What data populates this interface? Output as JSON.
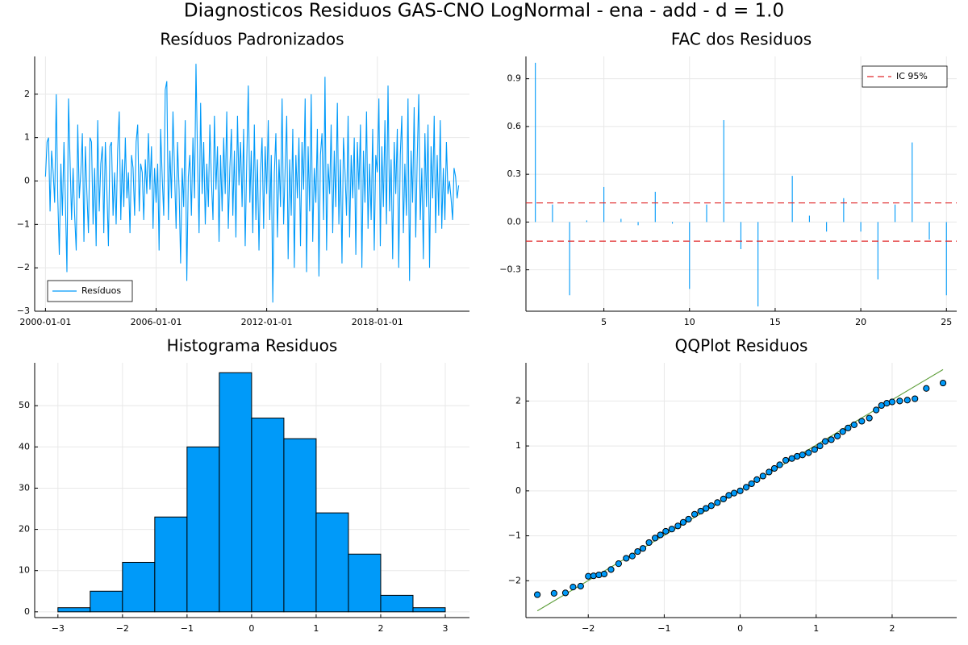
{
  "title": "Diagnosticos Residuos  GAS-CNO LogNormal - ena - add - d = 1.0",
  "chart_data": [
    {
      "type": "line",
      "title": "Resíduos Padronizados",
      "x": [
        "2000-01-01",
        "2000-02-01",
        "2000-03-01",
        "2000-04-01",
        "2000-05-01",
        "2000-06-01",
        "2000-07-01",
        "2000-08-01",
        "2000-09-01",
        "2000-10-01",
        "2000-11-01",
        "2000-12-01",
        "2001-01-01",
        "2001-02-01",
        "2001-03-01",
        "2001-04-01",
        "2001-05-01",
        "2001-06-01",
        "2001-07-01",
        "2001-08-01",
        "2001-09-01",
        "2001-10-01",
        "2001-11-01",
        "2001-12-01",
        "2002-01-01",
        "2002-02-01",
        "2002-03-01",
        "2002-04-01",
        "2002-05-01",
        "2002-06-01",
        "2002-07-01",
        "2002-08-01",
        "2002-09-01",
        "2002-10-01",
        "2002-11-01",
        "2002-12-01",
        "2003-01-01",
        "2003-02-01",
        "2003-03-01",
        "2003-04-01",
        "2003-05-01",
        "2003-06-01",
        "2003-07-01",
        "2003-08-01",
        "2003-09-01",
        "2003-10-01",
        "2003-11-01",
        "2003-12-01",
        "2004-01-01",
        "2004-02-01",
        "2004-03-01",
        "2004-04-01",
        "2004-05-01",
        "2004-06-01",
        "2004-07-01",
        "2004-08-01",
        "2004-09-01",
        "2004-10-01",
        "2004-11-01",
        "2004-12-01",
        "2005-01-01",
        "2005-02-01",
        "2005-03-01",
        "2005-04-01",
        "2005-05-01",
        "2005-06-01",
        "2005-07-01",
        "2005-08-01",
        "2005-09-01",
        "2005-10-01",
        "2005-11-01",
        "2005-12-01",
        "2006-01-01",
        "2006-02-01",
        "2006-03-01",
        "2006-04-01",
        "2006-05-01",
        "2006-06-01",
        "2006-07-01",
        "2006-08-01",
        "2006-09-01",
        "2006-10-01",
        "2006-11-01",
        "2006-12-01",
        "2007-01-01",
        "2007-02-01",
        "2007-03-01",
        "2007-04-01",
        "2007-05-01",
        "2007-06-01",
        "2007-07-01",
        "2007-08-01",
        "2007-09-01",
        "2007-10-01",
        "2007-11-01",
        "2007-12-01",
        "2008-01-01",
        "2008-02-01",
        "2008-03-01",
        "2008-04-01",
        "2008-05-01",
        "2008-06-01",
        "2008-07-01",
        "2008-08-01",
        "2008-09-01",
        "2008-10-01",
        "2008-11-01",
        "2008-12-01",
        "2009-01-01",
        "2009-02-01",
        "2009-03-01",
        "2009-04-01",
        "2009-05-01",
        "2009-06-01",
        "2009-07-01",
        "2009-08-01",
        "2009-09-01",
        "2009-10-01",
        "2009-11-01",
        "2009-12-01",
        "2010-01-01",
        "2010-02-01",
        "2010-03-01",
        "2010-04-01",
        "2010-05-01",
        "2010-06-01",
        "2010-07-01",
        "2010-08-01",
        "2010-09-01",
        "2010-10-01",
        "2010-11-01",
        "2010-12-01",
        "2011-01-01",
        "2011-02-01",
        "2011-03-01",
        "2011-04-01",
        "2011-05-01",
        "2011-06-01",
        "2011-07-01",
        "2011-08-01",
        "2011-09-01",
        "2011-10-01",
        "2011-11-01",
        "2011-12-01",
        "2012-01-01",
        "2012-02-01",
        "2012-03-01",
        "2012-04-01",
        "2012-05-01",
        "2012-06-01",
        "2012-07-01",
        "2012-08-01",
        "2012-09-01",
        "2012-10-01",
        "2012-11-01",
        "2012-12-01",
        "2013-01-01",
        "2013-02-01",
        "2013-03-01",
        "2013-04-01",
        "2013-05-01",
        "2013-06-01",
        "2013-07-01",
        "2013-08-01",
        "2013-09-01",
        "2013-10-01",
        "2013-11-01",
        "2013-12-01",
        "2014-01-01",
        "2014-02-01",
        "2014-03-01",
        "2014-04-01",
        "2014-05-01",
        "2014-06-01",
        "2014-07-01",
        "2014-08-01",
        "2014-09-01",
        "2014-10-01",
        "2014-11-01",
        "2014-12-01",
        "2015-01-01",
        "2015-02-01",
        "2015-03-01",
        "2015-04-01",
        "2015-05-01",
        "2015-06-01",
        "2015-07-01",
        "2015-08-01",
        "2015-09-01",
        "2015-10-01",
        "2015-11-01",
        "2015-12-01",
        "2016-01-01",
        "2016-02-01",
        "2016-03-01",
        "2016-04-01",
        "2016-05-01",
        "2016-06-01",
        "2016-07-01",
        "2016-08-01",
        "2016-09-01",
        "2016-10-01",
        "2016-11-01",
        "2016-12-01",
        "2017-01-01",
        "2017-02-01",
        "2017-03-01",
        "2017-04-01",
        "2017-05-01",
        "2017-06-01",
        "2017-07-01",
        "2017-08-01",
        "2017-09-01",
        "2017-10-01",
        "2017-11-01",
        "2017-12-01",
        "2018-01-01",
        "2018-02-01",
        "2018-03-01",
        "2018-04-01",
        "2018-05-01",
        "2018-06-01",
        "2018-07-01",
        "2018-08-01",
        "2018-09-01",
        "2018-10-01",
        "2018-11-01",
        "2018-12-01",
        "2019-01-01",
        "2019-02-01",
        "2019-03-01",
        "2019-04-01",
        "2019-05-01",
        "2019-06-01",
        "2019-07-01",
        "2019-08-01",
        "2019-09-01",
        "2019-10-01",
        "2019-11-01",
        "2019-12-01",
        "2020-01-01",
        "2020-02-01",
        "2020-03-01",
        "2020-04-01",
        "2020-05-01",
        "2020-06-01",
        "2020-07-01",
        "2020-08-01",
        "2020-09-01",
        "2020-10-01",
        "2020-11-01",
        "2020-12-01",
        "2021-01-01",
        "2021-02-01",
        "2021-03-01",
        "2021-04-01",
        "2021-05-01",
        "2021-06-01",
        "2021-07-01",
        "2021-08-01",
        "2021-09-01",
        "2021-10-01",
        "2021-11-01",
        "2021-12-01",
        "2022-01-01",
        "2022-02-01",
        "2022-03-01",
        "2022-04-01",
        "2022-05-01",
        "2022-06-01"
      ],
      "series": [
        {
          "name": "Resíduos",
          "color": "#009af9",
          "values": [
            0.1,
            0.9,
            1.0,
            -0.7,
            0.7,
            0.2,
            -0.5,
            2.0,
            -0.4,
            -1.7,
            0.4,
            -0.8,
            0.9,
            -0.6,
            -2.1,
            1.9,
            0.5,
            -0.9,
            0.3,
            -0.8,
            -1.6,
            1.3,
            -0.4,
            0.2,
            1.1,
            -1.4,
            0.8,
            -0.3,
            -1.2,
            1.0,
            0.9,
            -1.0,
            0.3,
            -1.5,
            1.4,
            -0.7,
            0.4,
            0.8,
            -1.2,
            0.9,
            -0.2,
            -1.5,
            0.8,
            0.9,
            -0.8,
            0.2,
            -1.0,
            0.7,
            1.6,
            -0.9,
            0.5,
            -0.6,
            1.0,
            -0.4,
            0.2,
            -1.2,
            0.6,
            0.3,
            -0.8,
            0.9,
            1.3,
            -0.7,
            0.4,
            0.2,
            -0.9,
            0.5,
            -0.3,
            1.1,
            -0.2,
            0.8,
            -1.1,
            0.3,
            -0.5,
            0.4,
            -1.6,
            1.2,
            0.1,
            -0.8,
            2.1,
            2.3,
            -0.9,
            0.7,
            -0.4,
            1.6,
            0.2,
            -1.1,
            0.9,
            -0.2,
            -1.9,
            0.3,
            -0.6,
            1.4,
            -2.3,
            0.1,
            0.6,
            -0.8,
            1.0,
            -0.4,
            2.7,
            0.5,
            -1.2,
            1.8,
            -0.3,
            0.9,
            -1.0,
            0.4,
            -0.6,
            1.3,
            0.0,
            -0.9,
            1.5,
            -0.2,
            0.8,
            -1.4,
            0.6,
            -0.7,
            1.0,
            -0.3,
            1.6,
            -1.1,
            0.3,
            1.2,
            -0.8,
            0.7,
            -1.3,
            1.5,
            -0.1,
            0.9,
            -0.6,
            1.2,
            -1.5,
            0.4,
            2.2,
            -0.5,
            0.7,
            -1.2,
            1.3,
            -0.9,
            0.5,
            -1.6,
            0.2,
            1.0,
            -1.1,
            0.8,
            -0.3,
            1.4,
            -0.9,
            0.6,
            -2.8,
            0.2,
            1.1,
            -1.3,
            0.5,
            -0.6,
            1.9,
            -1.0,
            0.3,
            1.5,
            -1.8,
            0.5,
            -0.8,
            1.2,
            -2.0,
            0.6,
            -0.4,
            1.0,
            -1.5,
            0.9,
            -0.2,
            1.9,
            -2.1,
            0.8,
            -0.7,
            2.0,
            -1.4,
            0.3,
            -0.5,
            1.2,
            -2.2,
            0.6,
            1.1,
            -0.9,
            2.4,
            -1.6,
            0.4,
            -0.3,
            1.3,
            -1.2,
            0.7,
            -0.6,
            1.8,
            -1.0,
            0.5,
            -1.9,
            1.0,
            0.2,
            -0.8,
            1.5,
            -1.3,
            0.6,
            -0.4,
            1.0,
            -1.7,
            0.9,
            -0.2,
            1.3,
            -2.0,
            0.7,
            -0.5,
            1.6,
            -1.1,
            0.4,
            -0.9,
            1.2,
            -1.6,
            0.6,
            0.2,
            1.9,
            -1.5,
            0.8,
            -0.6,
            1.4,
            -1.0,
            2.2,
            -0.7,
            0.5,
            -1.8,
            0.9,
            -0.3,
            1.2,
            -2.0,
            0.6,
            1.5,
            -1.2,
            0.4,
            -0.8,
            1.9,
            -2.3,
            0.7,
            -0.5,
            1.7,
            -1.3,
            0.5,
            2.0,
            -0.9,
            0.3,
            -1.8,
            1.1,
            -0.6,
            1.3,
            -2.0,
            0.8,
            -0.4,
            1.5,
            -1.2,
            0.6,
            -0.8,
            1.4,
            -1.1,
            0.3,
            -0.9,
            0.9,
            -0.3,
            0.0,
            -0.4,
            -0.9,
            0.3,
            0.1,
            -0.4,
            -0.1
          ]
        }
      ],
      "xlim": [
        "1999-06-01",
        "2023-01-01"
      ],
      "xticks": [
        "2000-01-01",
        "2006-01-01",
        "2012-01-01",
        "2018-01-01"
      ],
      "ylim": [
        -3,
        2.87
      ],
      "yticks": [
        {
          "value": -3,
          "label": "−3"
        },
        {
          "value": -2,
          "label": "−2"
        },
        {
          "value": -1,
          "label": "−1"
        },
        0,
        1,
        2
      ],
      "grid": true,
      "legend": "bottom left"
    },
    {
      "type": "stem",
      "title": "FAC dos Residuos",
      "x": [
        1,
        2,
        3,
        4,
        5,
        6,
        7,
        8,
        9,
        10,
        11,
        12,
        13,
        14,
        15,
        16,
        17,
        18,
        19,
        20,
        21,
        22,
        23,
        24,
        25
      ],
      "values": [
        1.0,
        0.11,
        -0.46,
        0.01,
        0.22,
        0.02,
        -0.02,
        0.19,
        -0.01,
        -0.42,
        0.11,
        0.64,
        -0.17,
        -0.53,
        0.0,
        0.29,
        0.04,
        -0.06,
        0.15,
        -0.06,
        -0.36,
        0.11,
        0.5,
        -0.11,
        -0.46
      ],
      "color": "#009af9",
      "reference_lines": [
        {
          "name": "IC 95%",
          "color": "#e0282a",
          "values": [
            0.12,
            -0.12
          ]
        }
      ],
      "xlim": [
        0.45,
        25.6
      ],
      "xticks": [
        5,
        10,
        15,
        20,
        25
      ],
      "ylim": [
        -0.56,
        1.04
      ],
      "yticks": [
        {
          "value": -0.3,
          "label": "−0.3"
        },
        {
          "value": 0,
          "label": "0.0"
        },
        0.3,
        0.6,
        0.9
      ],
      "grid": true,
      "legend": "top right"
    },
    {
      "type": "histogram",
      "title": "Histograma Residuos",
      "bins": [
        -3,
        -2.5,
        -2,
        -1.5,
        -1,
        -0.5,
        0,
        0.5,
        1,
        1.5,
        2,
        2.5,
        3
      ],
      "values": [
        1,
        5,
        12,
        23,
        40,
        58,
        47,
        42,
        24,
        14,
        4,
        1
      ],
      "color": "#009af9",
      "xlim": [
        -3.36,
        3.375
      ],
      "xticks": [
        {
          "value": -3,
          "label": "−3"
        },
        {
          "value": -2,
          "label": "−2"
        },
        {
          "value": -1,
          "label": "−1"
        },
        0,
        1,
        2,
        3
      ],
      "ylim": [
        -1.4,
        60.4
      ],
      "yticks": [
        0,
        10,
        20,
        30,
        40,
        50
      ],
      "grid": true
    },
    {
      "type": "scatter",
      "title": "QQPlot Residuos",
      "x": [
        -2.67,
        -2.45,
        -2.3,
        -2.2,
        -2.1,
        -2.0,
        -1.93,
        -1.86,
        -1.79,
        -1.7,
        -1.6,
        -1.5,
        -1.42,
        -1.35,
        -1.28,
        -1.2,
        -1.12,
        -1.05,
        -0.98,
        -0.9,
        -0.82,
        -0.75,
        -0.68,
        -0.6,
        -0.52,
        -0.45,
        -0.38,
        -0.3,
        -0.22,
        -0.15,
        -0.08,
        0,
        0.08,
        0.15,
        0.22,
        0.3,
        0.38,
        0.45,
        0.52,
        0.6,
        0.68,
        0.75,
        0.82,
        0.9,
        0.98,
        1.05,
        1.12,
        1.2,
        1.28,
        1.35,
        1.42,
        1.5,
        1.6,
        1.7,
        1.79,
        1.86,
        1.93,
        2.0,
        2.1,
        2.2,
        2.3,
        2.45,
        2.67
      ],
      "values": [
        -2.31,
        -2.28,
        -2.27,
        -2.14,
        -2.12,
        -1.9,
        -1.89,
        -1.87,
        -1.85,
        -1.75,
        -1.62,
        -1.5,
        -1.45,
        -1.35,
        -1.28,
        -1.15,
        -1.05,
        -0.98,
        -0.9,
        -0.85,
        -0.78,
        -0.7,
        -0.63,
        -0.52,
        -0.45,
        -0.39,
        -0.33,
        -0.26,
        -0.18,
        -0.1,
        -0.05,
        0,
        0.08,
        0.16,
        0.25,
        0.33,
        0.42,
        0.5,
        0.58,
        0.68,
        0.72,
        0.77,
        0.8,
        0.85,
        0.92,
        1.0,
        1.1,
        1.14,
        1.22,
        1.32,
        1.4,
        1.47,
        1.55,
        1.62,
        1.8,
        1.9,
        1.95,
        1.98,
        2.0,
        2.02,
        2.05,
        2.28,
        2.4
      ],
      "color": "#009af9",
      "line": {
        "color": "#5e9e3a",
        "x": [
          -2.67,
          2.67
        ],
        "values": [
          -2.67,
          2.7
        ]
      },
      "xlim": [
        -2.82,
        2.85
      ],
      "xticks": [
        {
          "value": -2,
          "label": "−2"
        },
        {
          "value": -1,
          "label": "−1"
        },
        0,
        1,
        2
      ],
      "ylim": [
        -2.82,
        2.85
      ],
      "yticks": [
        {
          "value": -2,
          "label": "−2"
        },
        {
          "value": -1,
          "label": "−1"
        },
        0,
        1,
        2
      ],
      "grid": true
    }
  ]
}
